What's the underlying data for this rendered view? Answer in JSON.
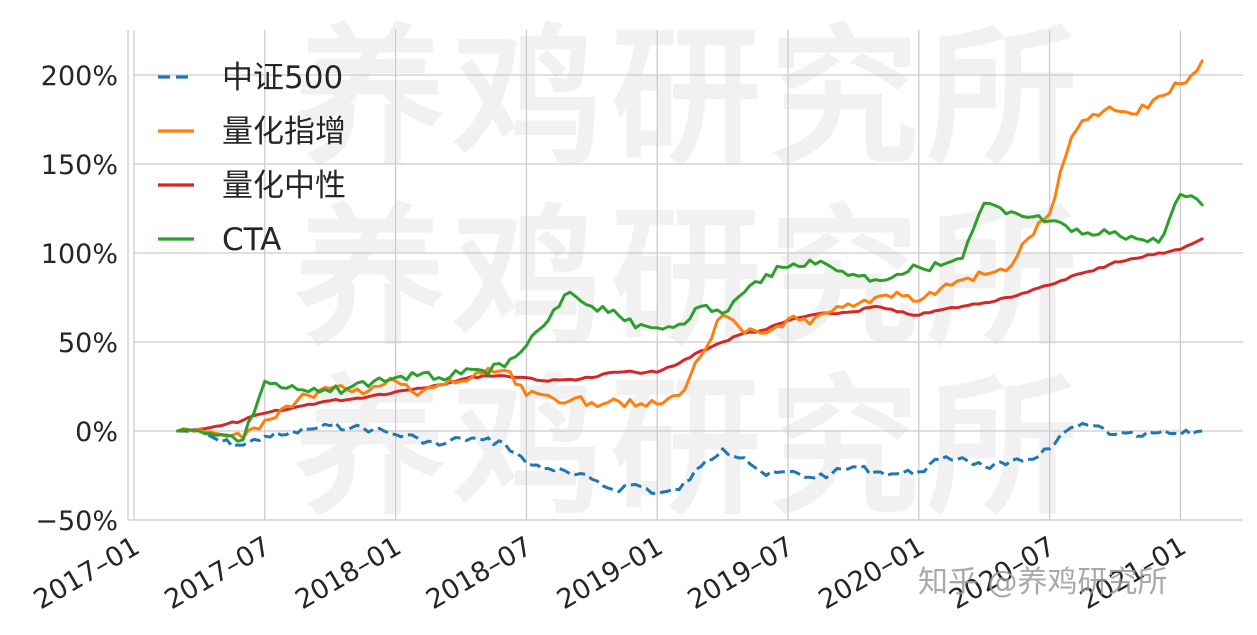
{
  "chart_data": {
    "type": "line",
    "title": "",
    "xlabel": "",
    "ylabel": "",
    "ylim": [
      -50,
      225
    ],
    "y_ticks": [
      -50,
      0,
      50,
      100,
      150,
      200
    ],
    "y_tick_labels": [
      "−50%",
      "0%",
      "50%",
      "100%",
      "150%",
      "200%"
    ],
    "x_ticks": [
      "2017-01",
      "2017-07",
      "2018-01",
      "2018-07",
      "2019-01",
      "2019-07",
      "2020-01",
      "2020-07",
      "2021-01"
    ],
    "x_tick_labels": [
      "2017–01",
      "2017–07",
      "2018–01",
      "2018–07",
      "2019–01",
      "2019–07",
      "2020–01",
      "2020–07",
      "2021–01"
    ],
    "grid": true,
    "legend_position": "upper left",
    "x": [
      "2017-03",
      "2017-04",
      "2017-05",
      "2017-06",
      "2017-07",
      "2017-08",
      "2017-09",
      "2017-10",
      "2017-11",
      "2017-12",
      "2018-01",
      "2018-02",
      "2018-03",
      "2018-04",
      "2018-05",
      "2018-06",
      "2018-07",
      "2018-08",
      "2018-09",
      "2018-10",
      "2018-11",
      "2018-12",
      "2019-01",
      "2019-02",
      "2019-03",
      "2019-04",
      "2019-05",
      "2019-06",
      "2019-07",
      "2019-08",
      "2019-09",
      "2019-10",
      "2019-11",
      "2019-12",
      "2020-01",
      "2020-02",
      "2020-03",
      "2020-04",
      "2020-05",
      "2020-06",
      "2020-07",
      "2020-08",
      "2020-09",
      "2020-10",
      "2020-11",
      "2020-12",
      "2021-01",
      "2021-02"
    ],
    "series": [
      {
        "name": "中证500",
        "color": "#1f77b4",
        "style": "dashed",
        "values": [
          0,
          0,
          -6,
          -8,
          -3,
          -2,
          1,
          3,
          2,
          1,
          -2,
          -4,
          -8,
          -4,
          -5,
          -7,
          -18,
          -21,
          -24,
          -27,
          -33,
          -30,
          -35,
          -33,
          -20,
          -10,
          -15,
          -25,
          -23,
          -26,
          -24,
          -20,
          -23,
          -24,
          -23,
          -16,
          -15,
          -20,
          -19,
          -16,
          -10,
          2,
          3,
          -2,
          -3,
          -1,
          -2,
          0
        ]
      },
      {
        "name": "量化指增",
        "color": "#ff7f0e",
        "style": "solid",
        "values": [
          0,
          1,
          -2,
          -4,
          6,
          14,
          20,
          24,
          22,
          25,
          28,
          20,
          26,
          28,
          32,
          34,
          20,
          20,
          17,
          16,
          18,
          14,
          15,
          20,
          42,
          65,
          55,
          55,
          63,
          60,
          67,
          70,
          75,
          78,
          73,
          80,
          85,
          88,
          90,
          108,
          122,
          165,
          178,
          180,
          178,
          188,
          195,
          208
        ]
      },
      {
        "name": "量化中性",
        "color": "#d62728",
        "style": "solid",
        "values": [
          0,
          1,
          3,
          6,
          10,
          12,
          15,
          17,
          18,
          20,
          22,
          24,
          26,
          29,
          31,
          31,
          30,
          28,
          29,
          30,
          33,
          33,
          33,
          38,
          45,
          50,
          55,
          57,
          62,
          65,
          66,
          67,
          70,
          67,
          65,
          68,
          70,
          72,
          75,
          78,
          82,
          87,
          90,
          95,
          97,
          100,
          102,
          108
        ]
      },
      {
        "name": "CTA",
        "color": "#2ca02c",
        "style": "solid",
        "values": [
          0,
          0,
          -2,
          -5,
          28,
          24,
          22,
          22,
          25,
          28,
          30,
          31,
          30,
          32,
          34,
          36,
          48,
          62,
          78,
          70,
          68,
          58,
          58,
          60,
          70,
          66,
          78,
          88,
          92,
          96,
          92,
          88,
          85,
          88,
          92,
          93,
          97,
          128,
          122,
          120,
          118,
          112,
          110,
          112,
          108,
          106,
          133,
          127
        ]
      }
    ],
    "watermark_rows": [
      "养鸡研究所",
      "养鸡研究所",
      "养鸡研究所"
    ]
  },
  "footer": {
    "source_watermark": "知乎 @养鸡研究所"
  }
}
